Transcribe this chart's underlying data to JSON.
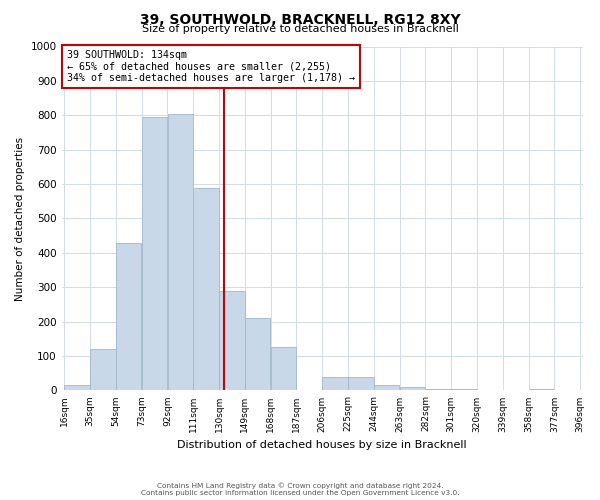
{
  "title": "39, SOUTHWOLD, BRACKNELL, RG12 8XY",
  "subtitle": "Size of property relative to detached houses in Bracknell",
  "xlabel": "Distribution of detached houses by size in Bracknell",
  "ylabel": "Number of detached properties",
  "bin_edges": [
    16,
    35,
    54,
    73,
    92,
    111,
    130,
    149,
    168,
    187,
    206,
    225,
    244,
    263,
    282,
    301,
    320,
    339,
    358,
    377,
    396
  ],
  "bar_heights": [
    15,
    120,
    430,
    795,
    805,
    590,
    290,
    210,
    125,
    0,
    40,
    40,
    15,
    10,
    5,
    5,
    0,
    0,
    5,
    0
  ],
  "bar_color": "#c8d8e8",
  "bar_edgecolor": "#a0b8cc",
  "xticklabels": [
    "16sqm",
    "35sqm",
    "54sqm",
    "73sqm",
    "92sqm",
    "111sqm",
    "130sqm",
    "149sqm",
    "168sqm",
    "187sqm",
    "206sqm",
    "225sqm",
    "244sqm",
    "263sqm",
    "282sqm",
    "301sqm",
    "320sqm",
    "339sqm",
    "358sqm",
    "377sqm",
    "396sqm"
  ],
  "ylim": [
    0,
    1000
  ],
  "yticks": [
    0,
    100,
    200,
    300,
    400,
    500,
    600,
    700,
    800,
    900,
    1000
  ],
  "property_line_x": 134,
  "property_line_color": "#cc0000",
  "annotation_title": "39 SOUTHWOLD: 134sqm",
  "annotation_line1": "← 65% of detached houses are smaller (2,255)",
  "annotation_line2": "34% of semi-detached houses are larger (1,178) →",
  "annotation_box_edgecolor": "#cc0000",
  "footer_line1": "Contains HM Land Registry data © Crown copyright and database right 2024.",
  "footer_line2": "Contains public sector information licensed under the Open Government Licence v3.0.",
  "background_color": "#ffffff",
  "grid_color": "#d0dce8"
}
